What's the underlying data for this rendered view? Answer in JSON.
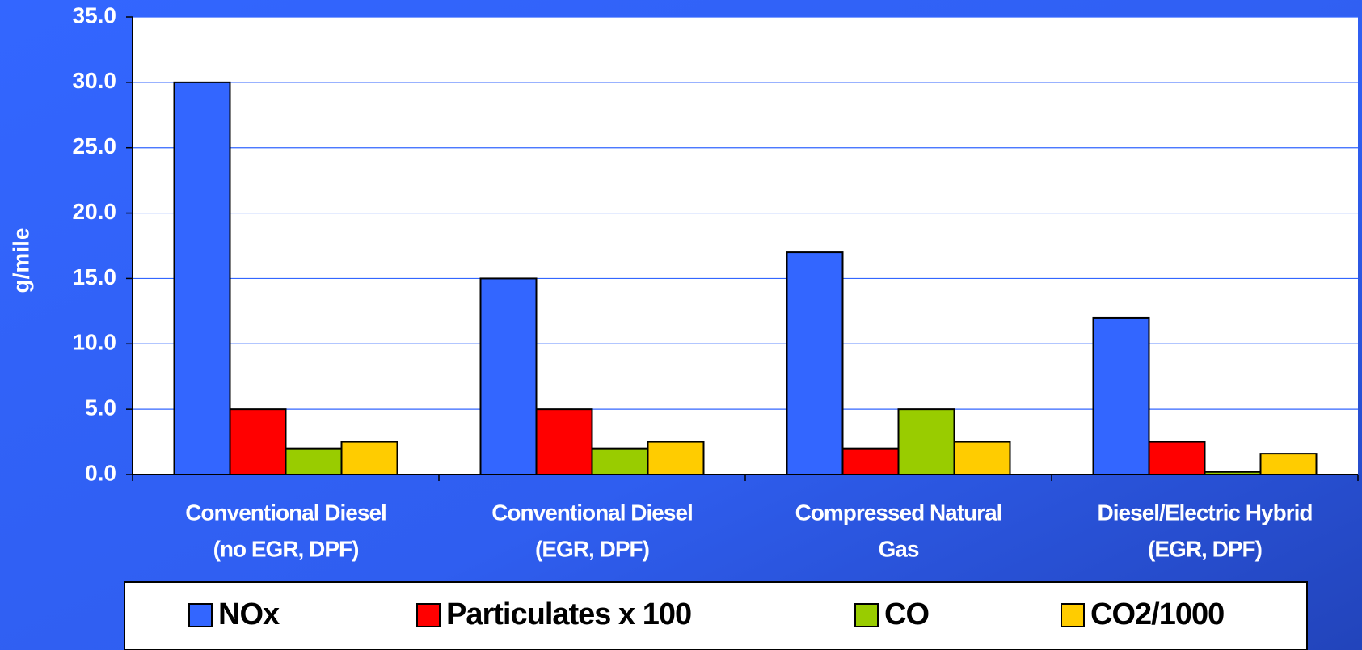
{
  "chart_data": {
    "type": "bar",
    "y_label": "g/mile",
    "categories": [
      [
        "Conventional Diesel",
        "(no EGR, DPF)"
      ],
      [
        "Conventional Diesel",
        "(EGR, DPF)"
      ],
      [
        "Compressed Natural",
        "Gas"
      ],
      [
        "Diesel/Electric Hybrid",
        "(EGR, DPF)"
      ]
    ],
    "series": [
      {
        "name": "NOx",
        "color": "#3366ff",
        "values": [
          30,
          15,
          17,
          12
        ]
      },
      {
        "name": "Particulates x 100",
        "color": "#ff0000",
        "values": [
          5,
          5,
          2,
          2.5
        ]
      },
      {
        "name": "CO",
        "color": "#99cc00",
        "values": [
          2,
          2,
          5,
          0.2
        ]
      },
      {
        "name": "CO2/1000",
        "color": "#ffcc00",
        "values": [
          2.5,
          2.5,
          2.5,
          1.6
        ]
      }
    ],
    "ylim": [
      0,
      35
    ],
    "yticks": [
      {
        "value": 0,
        "label": "0.0"
      },
      {
        "value": 5,
        "label": "5.0"
      },
      {
        "value": 10,
        "label": "10.0"
      },
      {
        "value": 15,
        "label": "15.0"
      },
      {
        "value": 20,
        "label": "20.0"
      },
      {
        "value": 25,
        "label": "25.0"
      },
      {
        "value": 30,
        "label": "30.0"
      },
      {
        "value": 35,
        "label": "35.0"
      }
    ],
    "grid": true,
    "legend": "bottom"
  }
}
